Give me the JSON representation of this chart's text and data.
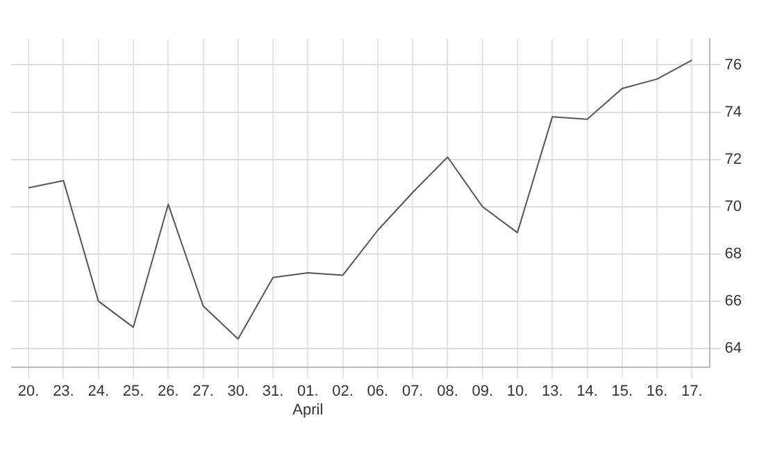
{
  "chart_data": {
    "type": "line",
    "categories": [
      "20.",
      "23.",
      "24.",
      "25.",
      "26.",
      "27.",
      "30.",
      "31.",
      "01.\nApril",
      "02.",
      "06.",
      "07.",
      "08.",
      "09.",
      "10.",
      "13.",
      "14.",
      "15.",
      "16.",
      "17."
    ],
    "series": [
      {
        "color": "#555555",
        "values": [
          70.8,
          71.1,
          66.0,
          64.9,
          70.1,
          65.8,
          64.4,
          67.0,
          67.2,
          67.1,
          69.0,
          70.6,
          72.1,
          70.0,
          68.9,
          73.8,
          73.7,
          75.0,
          75.4,
          76.2
        ]
      }
    ],
    "ylim": [
      63.2,
      77.1
    ],
    "yticks": [
      64,
      66,
      68,
      70,
      72,
      74,
      76
    ],
    "grid": true,
    "marker": "none",
    "line_style": "solid"
  }
}
